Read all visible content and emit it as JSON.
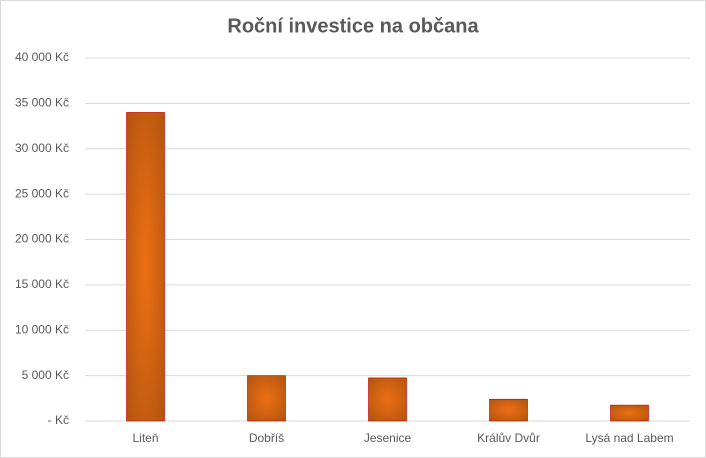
{
  "chart_data": {
    "type": "bar",
    "title": "Roční investice na občana",
    "categories": [
      "Liteň",
      "Dobříš",
      "Jesenice",
      "Králův Dvůr",
      "Lysá nad Labem"
    ],
    "values": [
      34000,
      5000,
      4750,
      2400,
      1750
    ],
    "color": "#ed7014",
    "ylim": [
      0,
      40000
    ],
    "yticks": [
      {
        "value": 0,
        "label": "-   Kč"
      },
      {
        "value": 5000,
        "label": "5 000 Kč"
      },
      {
        "value": 10000,
        "label": "10 000 Kč"
      },
      {
        "value": 15000,
        "label": "15 000 Kč"
      },
      {
        "value": 20000,
        "label": "20 000 Kč"
      },
      {
        "value": 25000,
        "label": "25 000 Kč"
      },
      {
        "value": 30000,
        "label": "30 000 Kč"
      },
      {
        "value": 35000,
        "label": "35 000 Kč"
      },
      {
        "value": 40000,
        "label": "40 000 Kč"
      }
    ],
    "grid": true
  }
}
